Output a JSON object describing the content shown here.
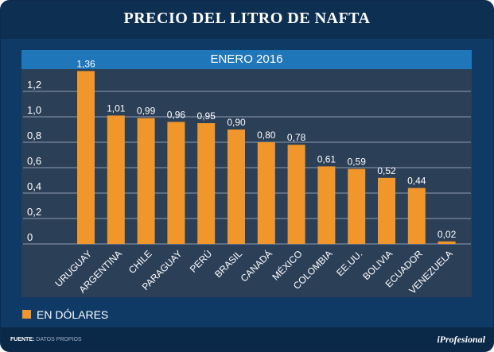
{
  "header": {
    "title": "PRECIO DEL LITRO DE NAFTA"
  },
  "legend": {
    "label": "EN DÓLARES",
    "color": "#f0962a"
  },
  "footer": {
    "source_label": "FUENTE:",
    "source_text": "DATOS PROPIOS",
    "brand": "iProfesional"
  },
  "chart_data": {
    "type": "bar",
    "title": "PRECIO DEL LITRO DE NAFTA",
    "subtitle": "ENERO 2016",
    "categories": [
      "URUGUAY",
      "ARGENTINA",
      "CHILE",
      "PARAGUAY",
      "PERÚ",
      "BRASIL",
      "CANADÁ",
      "MÉXICO",
      "COLOMBIA",
      "EE.UU.",
      "BOLIVIA",
      "ECUADOR",
      "VENEZUELA"
    ],
    "values": [
      1.36,
      1.01,
      0.99,
      0.96,
      0.95,
      0.9,
      0.8,
      0.78,
      0.61,
      0.59,
      0.52,
      0.44,
      0.02
    ],
    "value_labels": [
      "1,36",
      "1,01",
      "0,99",
      "0,96",
      "0,95",
      "0,90",
      "0,80",
      "0,78",
      "0,61",
      "0,59",
      "0,52",
      "0,44",
      "0,02"
    ],
    "yticks": [
      0,
      0.2,
      0.4,
      0.6,
      0.8,
      1.0,
      1.2
    ],
    "ytick_labels": [
      "0",
      "0,2",
      "0,4",
      "0,6",
      "0,8",
      "1,0",
      "1,2"
    ],
    "ylim": [
      0,
      1.36
    ],
    "xlabel": "",
    "ylabel": "",
    "grid": true,
    "legend_position": "bottom-left",
    "colors": {
      "bar": "#f0962a",
      "grid": "#8c9bb0",
      "text": "#ffffff"
    }
  }
}
